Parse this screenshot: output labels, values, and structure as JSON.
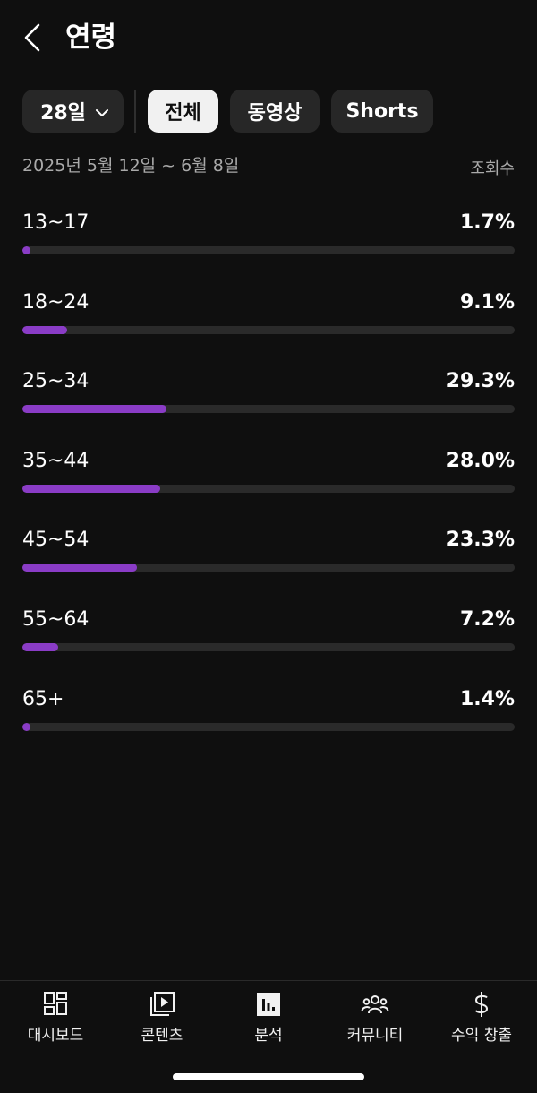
{
  "header": {
    "title": "연령"
  },
  "filters": {
    "period": "28일",
    "tabs": [
      {
        "label": "전체",
        "active": true
      },
      {
        "label": "동영상",
        "active": false
      },
      {
        "label": "Shorts",
        "active": false
      }
    ]
  },
  "date_range": "2025년 5월 12일 ~ 6월 8일",
  "metric_label": "조회수",
  "accent_color": "#8a3cc6",
  "chart_data": {
    "type": "bar",
    "categories": [
      "13~17",
      "18~24",
      "25~34",
      "35~44",
      "45~54",
      "55~64",
      "65+"
    ],
    "values": [
      1.7,
      9.1,
      29.3,
      28.0,
      23.3,
      7.2,
      1.4
    ],
    "labels": [
      "1.7%",
      "9.1%",
      "29.3%",
      "28.0%",
      "23.3%",
      "7.2%",
      "1.4%"
    ],
    "orientation": "horizontal",
    "xlim": [
      0,
      100
    ]
  },
  "nav": {
    "items": [
      {
        "label": "대시보드",
        "icon": "dashboard-icon"
      },
      {
        "label": "콘텐츠",
        "icon": "content-icon"
      },
      {
        "label": "분석",
        "icon": "analytics-icon",
        "active": true
      },
      {
        "label": "커뮤니티",
        "icon": "community-icon"
      },
      {
        "label": "수익 창출",
        "icon": "monetization-icon"
      }
    ]
  }
}
